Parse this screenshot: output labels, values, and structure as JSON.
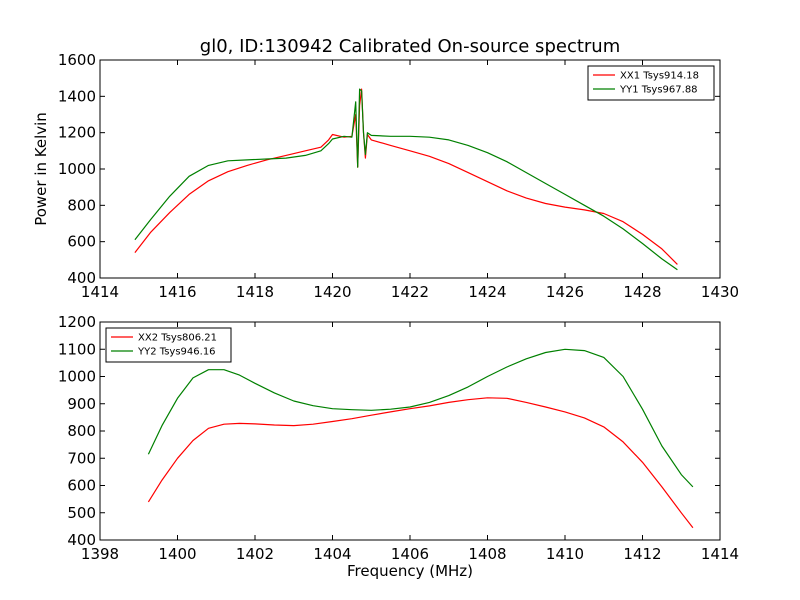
{
  "chart_data": [
    {
      "type": "line",
      "title": "gl0, ID:130942 Calibrated On-source spectrum",
      "xlabel": "",
      "ylabel": "Power in Kelvin",
      "xlim": [
        1414,
        1430
      ],
      "ylim": [
        400,
        1600
      ],
      "xticks": [
        "1414",
        "1416",
        "1418",
        "1420",
        "1422",
        "1424",
        "1426",
        "1428",
        "1430"
      ],
      "yticks": [
        "400",
        "600",
        "800",
        "1000",
        "1200",
        "1400",
        "1600"
      ],
      "legend_position": "top-right",
      "series": [
        {
          "name": "XX1 Tsys914.18",
          "color": "#ff0000",
          "x": [
            1414.9,
            1415.3,
            1415.8,
            1416.3,
            1416.8,
            1417.3,
            1417.8,
            1418.3,
            1418.8,
            1419.3,
            1419.7,
            1419.9,
            1420.0,
            1420.3,
            1420.5,
            1420.6,
            1420.65,
            1420.7,
            1420.75,
            1420.8,
            1420.85,
            1420.9,
            1421.0,
            1421.5,
            1422.0,
            1422.5,
            1423.0,
            1423.5,
            1424.0,
            1424.5,
            1425.0,
            1425.5,
            1426.0,
            1426.5,
            1427.0,
            1427.5,
            1428.0,
            1428.5,
            1428.9
          ],
          "values": [
            540,
            650,
            760,
            860,
            935,
            985,
            1020,
            1050,
            1075,
            1100,
            1120,
            1160,
            1190,
            1175,
            1180,
            1300,
            1010,
            1350,
            1440,
            1200,
            1060,
            1190,
            1160,
            1130,
            1100,
            1070,
            1030,
            980,
            930,
            880,
            840,
            810,
            790,
            775,
            755,
            710,
            640,
            560,
            475
          ]
        },
        {
          "name": "YY1 Tsys967.88",
          "color": "#008000",
          "x": [
            1414.9,
            1415.3,
            1415.8,
            1416.3,
            1416.8,
            1417.3,
            1417.8,
            1418.3,
            1418.8,
            1419.3,
            1419.7,
            1419.9,
            1420.0,
            1420.3,
            1420.5,
            1420.6,
            1420.65,
            1420.7,
            1420.75,
            1420.8,
            1420.85,
            1420.9,
            1421.0,
            1421.5,
            1422.0,
            1422.5,
            1423.0,
            1423.5,
            1424.0,
            1424.5,
            1425.0,
            1425.5,
            1426.0,
            1426.5,
            1427.0,
            1427.5,
            1428.0,
            1428.5,
            1428.9
          ],
          "values": [
            610,
            720,
            850,
            960,
            1020,
            1045,
            1050,
            1055,
            1060,
            1075,
            1100,
            1140,
            1165,
            1180,
            1175,
            1370,
            1010,
            1440,
            1430,
            1200,
            1080,
            1200,
            1185,
            1180,
            1180,
            1175,
            1160,
            1130,
            1090,
            1040,
            980,
            920,
            860,
            800,
            740,
            670,
            590,
            505,
            445
          ]
        }
      ]
    },
    {
      "type": "line",
      "title": "",
      "xlabel": "Frequency (MHz)",
      "ylabel": "",
      "xlim": [
        1398,
        1414
      ],
      "ylim": [
        400,
        1200
      ],
      "xticks": [
        "1398",
        "1400",
        "1402",
        "1404",
        "1406",
        "1408",
        "1410",
        "1412",
        "1414"
      ],
      "yticks": [
        "400",
        "500",
        "600",
        "700",
        "800",
        "900",
        "1000",
        "1100",
        "1200"
      ],
      "legend_position": "top-left",
      "series": [
        {
          "name": "XX2 Tsys806.21",
          "color": "#ff0000",
          "x": [
            1399.25,
            1399.6,
            1400.0,
            1400.4,
            1400.8,
            1401.2,
            1401.6,
            1402.0,
            1402.5,
            1403.0,
            1403.5,
            1404.0,
            1404.5,
            1405.0,
            1405.5,
            1406.0,
            1406.5,
            1407.0,
            1407.5,
            1408.0,
            1408.5,
            1409.0,
            1409.5,
            1410.0,
            1410.5,
            1411.0,
            1411.5,
            1412.0,
            1412.5,
            1413.0,
            1413.3
          ],
          "values": [
            540,
            620,
            700,
            765,
            810,
            825,
            828,
            826,
            822,
            820,
            825,
            835,
            845,
            858,
            870,
            882,
            892,
            905,
            915,
            922,
            920,
            905,
            888,
            870,
            848,
            815,
            760,
            685,
            595,
            500,
            445
          ]
        },
        {
          "name": "YY2 Tsys946.16",
          "color": "#008000",
          "x": [
            1399.25,
            1399.6,
            1400.0,
            1400.4,
            1400.8,
            1401.2,
            1401.6,
            1402.0,
            1402.5,
            1403.0,
            1403.5,
            1404.0,
            1404.5,
            1405.0,
            1405.5,
            1406.0,
            1406.5,
            1407.0,
            1407.5,
            1408.0,
            1408.5,
            1409.0,
            1409.5,
            1410.0,
            1410.5,
            1411.0,
            1411.5,
            1412.0,
            1412.5,
            1413.0,
            1413.3
          ],
          "values": [
            715,
            820,
            920,
            995,
            1025,
            1025,
            1005,
            975,
            940,
            910,
            893,
            882,
            878,
            876,
            880,
            888,
            905,
            930,
            962,
            1000,
            1035,
            1065,
            1088,
            1100,
            1095,
            1070,
            1000,
            880,
            745,
            640,
            595
          ]
        }
      ]
    }
  ]
}
